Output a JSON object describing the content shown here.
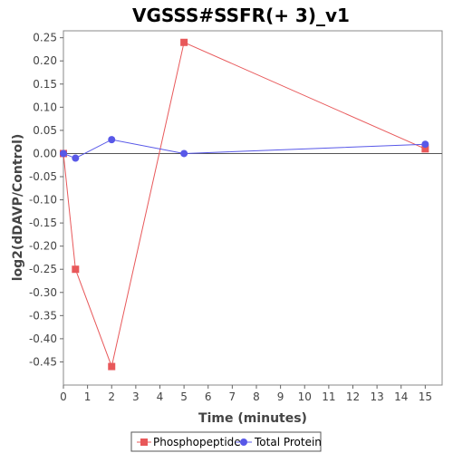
{
  "chart_data": {
    "type": "line",
    "title": "VGSSS#SSFR(+ 3)_v1",
    "xlabel": "Time (minutes)",
    "ylabel": "log2(dDAVP/Control)",
    "xlim": [
      0,
      15.7
    ],
    "ylim": [
      -0.5,
      0.265
    ],
    "xticks": [
      0,
      1,
      2,
      3,
      4,
      5,
      6,
      7,
      8,
      9,
      10,
      11,
      12,
      13,
      14,
      15
    ],
    "yticks": [
      -0.45,
      -0.4,
      -0.35,
      -0.3,
      -0.25,
      -0.2,
      -0.15,
      -0.1,
      -0.05,
      0.0,
      0.05,
      0.1,
      0.15,
      0.2,
      0.25
    ],
    "ytick_labels": [
      "-0.45",
      "-0.40",
      "-0.35",
      "-0.30",
      "-0.25",
      "-0.20",
      "-0.15",
      "-0.10",
      "-0.05",
      "0.00",
      "0.05",
      "0.10",
      "0.15",
      "0.20",
      "0.25"
    ],
    "grid": false,
    "zero_line": true,
    "legend_position": "bottom",
    "series": [
      {
        "name": "Phosphopeptide",
        "color": "#e8585a",
        "marker": "square",
        "x": [
          0,
          0.5,
          2,
          5,
          15
        ],
        "y": [
          0.0,
          -0.25,
          -0.46,
          0.24,
          0.01
        ]
      },
      {
        "name": "Total Protein",
        "color": "#5858e8",
        "marker": "circle",
        "x": [
          0,
          0.5,
          2,
          5,
          15
        ],
        "y": [
          0.0,
          -0.01,
          0.03,
          0.0,
          0.02
        ]
      }
    ]
  }
}
